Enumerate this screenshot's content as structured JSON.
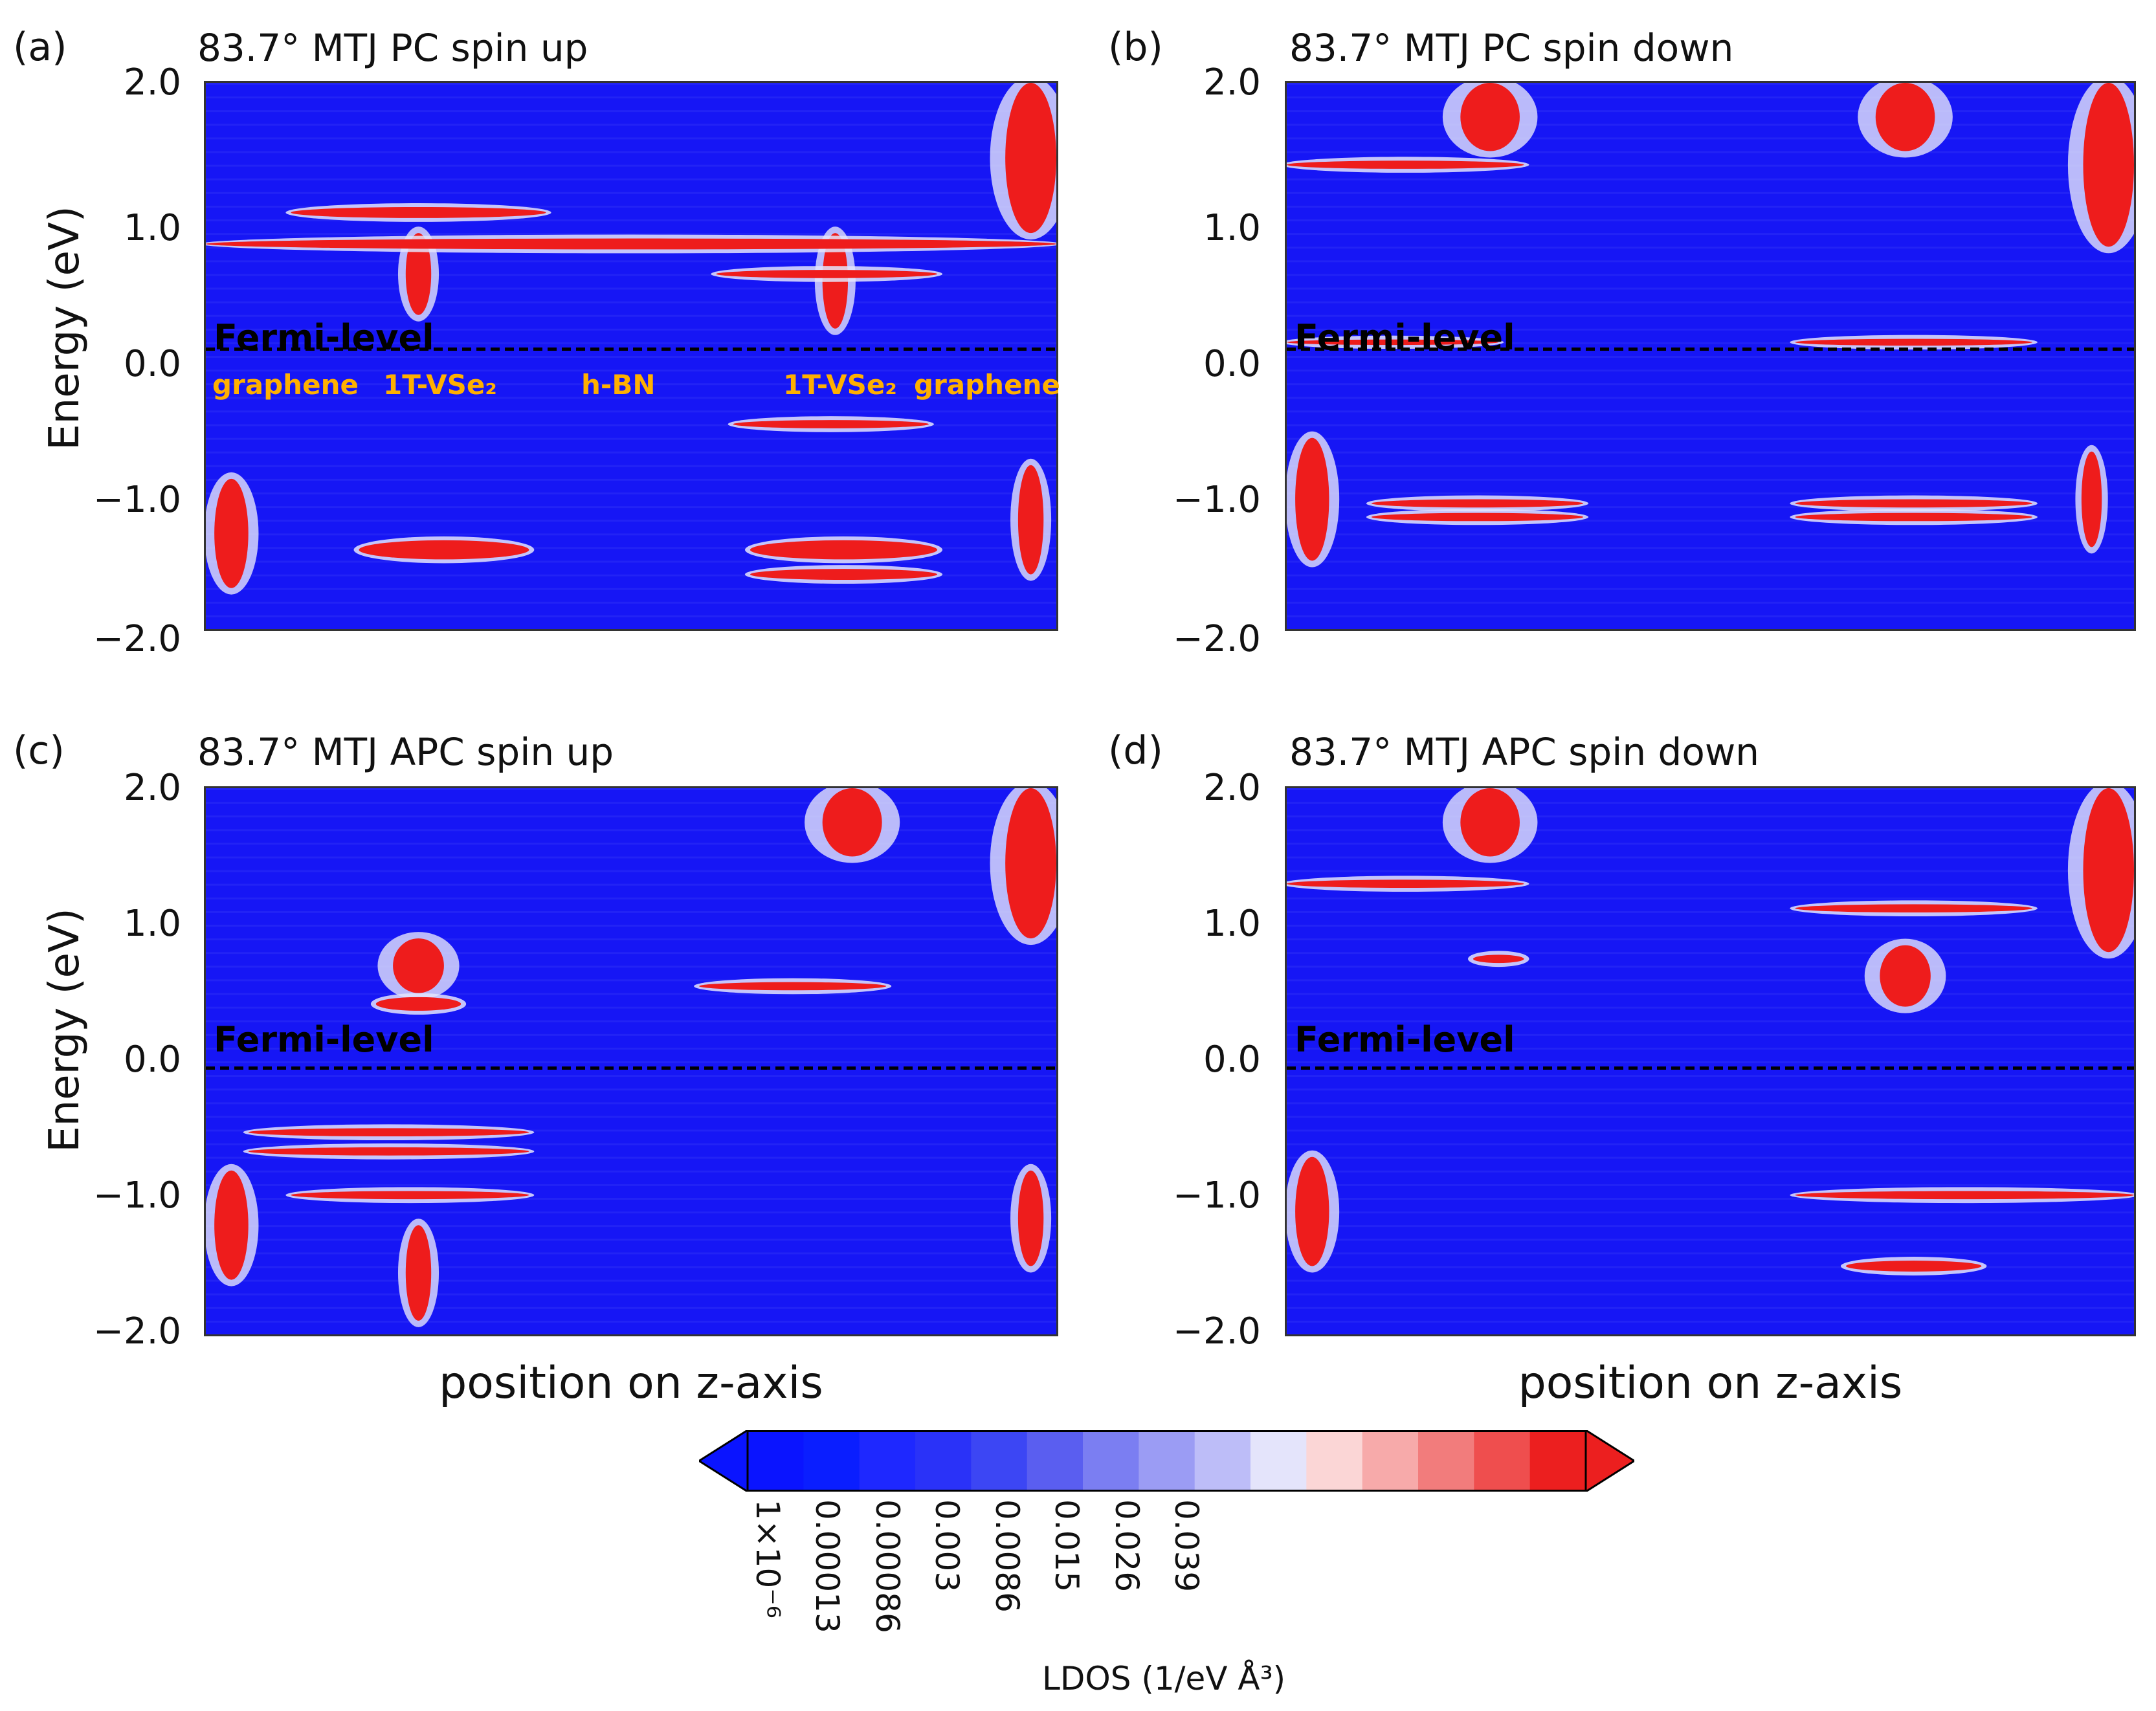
{
  "chart_data": [
    {
      "type": "heatmap",
      "panel_label": "(a)",
      "title": "83.7° MTJ PC spin up",
      "ylabel": "Energy (eV)",
      "xlabel": "",
      "yticks": [
        "2.0",
        "1.0",
        "0.0",
        "−1.0",
        "−2.0"
      ],
      "ylim": [
        -2.0,
        2.0
      ],
      "fermi_label": "Fermi-level",
      "fermi_energy": 0.05,
      "region_labels": [
        "graphene",
        "1T-VSe₂",
        "h-BN",
        "1T-VSe₂",
        "graphene"
      ],
      "bands": [
        {
          "e": 0.82,
          "x0": 0.0,
          "x1": 1.0,
          "s": 0.04
        },
        {
          "e": 1.05,
          "x0": 0.1,
          "x1": 0.4,
          "s": 0.04
        },
        {
          "e": 0.6,
          "x0": 0.6,
          "x1": 0.86,
          "s": 0.03
        },
        {
          "e": -0.5,
          "x0": 0.62,
          "x1": 0.85,
          "s": 0.03
        },
        {
          "e": -1.42,
          "x0": 0.18,
          "x1": 0.38,
          "s": 0.07
        },
        {
          "e": -1.42,
          "x0": 0.64,
          "x1": 0.86,
          "s": 0.07
        },
        {
          "e": -1.6,
          "x0": 0.64,
          "x1": 0.86,
          "s": 0.04
        }
      ],
      "columns": [
        {
          "x": 0.03,
          "e0": -1.7,
          "e1": -0.9,
          "w": 0.02
        },
        {
          "x": 0.97,
          "e0": 0.9,
          "e1": 2.0,
          "w": 0.03
        },
        {
          "x": 0.97,
          "e0": -1.6,
          "e1": -0.8,
          "w": 0.015
        },
        {
          "x": 0.25,
          "e0": 0.3,
          "e1": 0.9,
          "w": 0.015
        },
        {
          "x": 0.74,
          "e0": 0.2,
          "e1": 0.9,
          "w": 0.015
        }
      ]
    },
    {
      "type": "heatmap",
      "panel_label": "(b)",
      "title": "83.7° MTJ PC spin down",
      "ylabel": "",
      "xlabel": "",
      "yticks": [
        "2.0",
        "1.0",
        "0.0",
        "−1.0",
        "−2.0"
      ],
      "ylim": [
        -2.0,
        2.0
      ],
      "fermi_label": "Fermi-level",
      "fermi_energy": 0.05,
      "region_labels": [],
      "bands": [
        {
          "e": 1.4,
          "x0": 0.0,
          "x1": 0.28,
          "s": 0.03
        },
        {
          "e": 0.1,
          "x0": 0.6,
          "x1": 0.88,
          "s": 0.025
        },
        {
          "e": 0.1,
          "x0": 0.0,
          "x1": 0.25,
          "s": 0.02
        },
        {
          "e": -1.08,
          "x0": 0.1,
          "x1": 0.35,
          "s": 0.03
        },
        {
          "e": -1.18,
          "x0": 0.1,
          "x1": 0.35,
          "s": 0.03
        },
        {
          "e": -1.08,
          "x0": 0.6,
          "x1": 0.88,
          "s": 0.03
        },
        {
          "e": -1.18,
          "x0": 0.6,
          "x1": 0.88,
          "s": 0.03
        }
      ],
      "columns": [
        {
          "x": 0.24,
          "e0": 1.5,
          "e1": 2.0,
          "w": 0.035
        },
        {
          "x": 0.73,
          "e0": 1.5,
          "e1": 2.0,
          "w": 0.035
        },
        {
          "x": 0.97,
          "e0": 0.8,
          "e1": 2.0,
          "w": 0.03
        },
        {
          "x": 0.03,
          "e0": -1.5,
          "e1": -0.6,
          "w": 0.02
        },
        {
          "x": 0.95,
          "e0": -1.4,
          "e1": -0.7,
          "w": 0.012
        }
      ]
    },
    {
      "type": "heatmap",
      "panel_label": "(c)",
      "title": "83.7° MTJ APC spin up",
      "ylabel": "Energy (eV)",
      "xlabel": "position on z-axis",
      "yticks": [
        "2.0",
        "1.0",
        "0.0",
        "−1.0",
        "−2.0"
      ],
      "ylim": [
        -2.0,
        2.0
      ],
      "fermi_label": "Fermi-level",
      "fermi_energy": -0.05,
      "region_labels": [],
      "bands": [
        {
          "e": 0.55,
          "x0": 0.58,
          "x1": 0.8,
          "s": 0.03
        },
        {
          "e": -0.52,
          "x0": 0.05,
          "x1": 0.38,
          "s": 0.03
        },
        {
          "e": -0.66,
          "x0": 0.05,
          "x1": 0.38,
          "s": 0.03
        },
        {
          "e": -0.98,
          "x0": 0.1,
          "x1": 0.38,
          "s": 0.03
        },
        {
          "e": 0.42,
          "x0": 0.2,
          "x1": 0.3,
          "s": 0.05
        }
      ],
      "columns": [
        {
          "x": 0.25,
          "e0": 0.5,
          "e1": 0.9,
          "w": 0.03
        },
        {
          "x": 0.76,
          "e0": 1.5,
          "e1": 2.0,
          "w": 0.035
        },
        {
          "x": 0.97,
          "e0": 0.9,
          "e1": 2.0,
          "w": 0.03
        },
        {
          "x": 0.03,
          "e0": -1.6,
          "e1": -0.8,
          "w": 0.02
        },
        {
          "x": 0.97,
          "e0": -1.5,
          "e1": -0.8,
          "w": 0.015
        },
        {
          "x": 0.25,
          "e0": -1.9,
          "e1": -1.2,
          "w": 0.015
        }
      ]
    },
    {
      "type": "heatmap",
      "panel_label": "(d)",
      "title": "83.7° MTJ APC spin down",
      "ylabel": "",
      "xlabel": "position on z-axis",
      "yticks": [
        "2.0",
        "1.0",
        "0.0",
        "−1.0",
        "−2.0"
      ],
      "ylim": [
        -2.0,
        2.0
      ],
      "fermi_label": "Fermi-level",
      "fermi_energy": -0.05,
      "region_labels": [],
      "bands": [
        {
          "e": 1.3,
          "x0": 0.0,
          "x1": 0.28,
          "s": 0.03
        },
        {
          "e": 1.12,
          "x0": 0.6,
          "x1": 0.88,
          "s": 0.03
        },
        {
          "e": -0.98,
          "x0": 0.6,
          "x1": 1.0,
          "s": 0.03
        },
        {
          "e": -1.5,
          "x0": 0.66,
          "x1": 0.82,
          "s": 0.04
        },
        {
          "e": 0.75,
          "x0": 0.22,
          "x1": 0.28,
          "s": 0.03
        }
      ],
      "columns": [
        {
          "x": 0.24,
          "e0": 1.5,
          "e1": 2.0,
          "w": 0.035
        },
        {
          "x": 0.73,
          "e0": 0.4,
          "e1": 0.85,
          "w": 0.03
        },
        {
          "x": 0.97,
          "e0": 0.8,
          "e1": 2.0,
          "w": 0.03
        },
        {
          "x": 0.03,
          "e0": -1.5,
          "e1": -0.7,
          "w": 0.02
        }
      ]
    }
  ],
  "colorbar": {
    "title": "LDOS (1/eV Å³)",
    "ticks": [
      "1×10⁻⁶",
      "0.00013",
      "0.00086",
      "0.003",
      "0.0086",
      "0.015",
      "0.026",
      "0.039"
    ],
    "colors": [
      "#0a14ff",
      "#0a1eff",
      "#1e28ff",
      "#2a32f8",
      "#3c46f4",
      "#5a5ef0",
      "#7b7ef2",
      "#9b9cf4",
      "#bdbdf8",
      "#e4e4fb",
      "#fbd6d6",
      "#f7aaaa",
      "#f27c7c",
      "#ef4e4e",
      "#ec1f1f"
    ]
  }
}
